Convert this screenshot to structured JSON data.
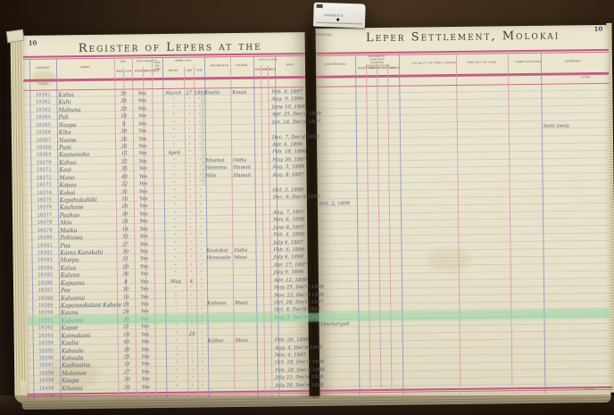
{
  "header": {
    "left_title": "Register of Lepers at the",
    "right_title": "Leper Settlement, Molokai",
    "left_page_number": "10",
    "right_page_number": "10"
  },
  "tab": {
    "line1": "HANSEN'S",
    "line2": "DISEASE"
  },
  "total_label": "TOTAL",
  "columns": {
    "left": {
      "number": "NUMBER",
      "name": "NAME",
      "sex_group": "SEX",
      "sex_male": "Male",
      "sex_female": "Fem.",
      "nat_group": "NATIONALITY",
      "nat_hawaiian": "Hawaiian",
      "nat_foreigner": "Foreigner",
      "age": "AGE ON ADM.",
      "adm_group": "ADMITTED",
      "adm_month": "Month",
      "adm_day": "Day",
      "adm_year": "Year",
      "residence": "RESIDENCE",
      "island": "ISLAND",
      "civil_group": "CIVIL STATE",
      "civil_married": "Married",
      "civil_unmarried": "Unmar.",
      "civil_widowed": "Wid.",
      "died": "DIED"
    },
    "right": {
      "discharged": "DISCHARGED",
      "manifest_group": "NATURE OF EARLIEST LEPROUS MANIFESTATION",
      "manifest_subs": [
        "Anaesthetic",
        "Macular",
        "Tubercular",
        "Mixed"
      ],
      "locality": "LOCALITY OF FIRST LESION",
      "history": "HISTORY OF CASE",
      "complications": "COMPLICATIONS",
      "remarks": "REMARKS"
    }
  },
  "rows": [
    {
      "n": "10361",
      "name": "Kahia",
      "age": "30",
      "haw": "Yes",
      "mo": "March",
      "dy": "27",
      "yr": "1893",
      "res": "Kealia",
      "isl": "Kauai",
      "died": "Feb. 8, 1897"
    },
    {
      "n": "10362",
      "name": "Kuhi",
      "age": "38",
      "haw": "Yes",
      "mo": "″",
      "dy": "″",
      "yr": "″",
      "died": "Aug. 9, 1896"
    },
    {
      "n": "10363",
      "name": "Mahuna",
      "age": "28",
      "haw": "Yes",
      "mo": "″",
      "dy": "″",
      "yr": "″",
      "died": "June 10, 1900"
    },
    {
      "n": "10364",
      "name": "Pali",
      "age": "18",
      "haw": "Yes",
      "mo": "″",
      "dy": "″",
      "yr": "″",
      "died": "Apr. 25, Dec'd 1898"
    },
    {
      "n": "10365",
      "name": "Naapa",
      "age": "8",
      "haw": "Yes",
      "mo": "″",
      "dy": "″",
      "yr": "″",
      "died": "Jan. 24, Dec'd 1897"
    },
    {
      "n": "10366",
      "name": "Kiha",
      "age": "30",
      "haw": "Yes",
      "mo": "″",
      "dy": "″",
      "yr": "″",
      "rem": "Sent away"
    },
    {
      "n": "10367",
      "name": "Naone",
      "age": "26",
      "haw": "Yes",
      "mo": "″",
      "dy": "″",
      "yr": "″",
      "died": "Dec. 7, Dec'd 1896"
    },
    {
      "n": "10368",
      "name": "Puni",
      "age": "20",
      "haw": "Yes",
      "mo": "″",
      "dy": "″",
      "yr": "″",
      "died": "Apr. 6, 1896"
    },
    {
      "n": "10369",
      "name": "Kaananoho",
      "age": "15",
      "haw": "Yes",
      "mo": "April",
      "dy": "″",
      "yr": "″",
      "died": "Feb. 18, 1898"
    },
    {
      "n": "10370",
      "name": "Kahua",
      "age": "25",
      "haw": "Yes",
      "mo": "″",
      "dy": "″",
      "yr": "″",
      "res": "Moanui",
      "isl": "Oahu",
      "died": "May 30, 1897"
    },
    {
      "n": "10371",
      "name": "Kaai",
      "age": "35",
      "haw": "Yes",
      "mo": "″",
      "dy": "″",
      "yr": "″",
      "res": "Honomu",
      "isl": "Hawaii",
      "died": "Aug. 5, 1899"
    },
    {
      "n": "10372",
      "name": "Mano",
      "age": "40",
      "haw": "Yes",
      "mo": "″",
      "dy": "″",
      "yr": "″",
      "res": "Hilo",
      "isl": "Hawaii",
      "died": "Aug. 8, 1897"
    },
    {
      "n": "10373",
      "name": "Kapaa",
      "age": "22",
      "haw": "Yes",
      "mo": "″",
      "dy": "″",
      "yr": "″"
    },
    {
      "n": "10374",
      "name": "Kahai",
      "age": "31",
      "haw": "Yes",
      "mo": "″",
      "dy": "″",
      "yr": "″",
      "died": "Oct. 3, 1898"
    },
    {
      "n": "10375",
      "name": "Kapahukahiki",
      "age": "16",
      "haw": "Yes",
      "mo": "″",
      "dy": "″",
      "yr": "″",
      "died": "Dec. 9, Dec'd 1896"
    },
    {
      "n": "10376",
      "name": "Kauhane",
      "age": "26",
      "haw": "Yes",
      "mo": "″",
      "dy": "″",
      "yr": "″",
      "disch": "Oct. 2, 1899"
    },
    {
      "n": "10377",
      "name": "Paahao",
      "age": "30",
      "haw": "Yes",
      "mo": "″",
      "dy": "″",
      "yr": "″",
      "died": "Aug. 7, 1897"
    },
    {
      "n": "10378",
      "name": "Akiu",
      "age": "24",
      "haw": "Yes",
      "mo": "″",
      "dy": "″",
      "yr": "″",
      "died": "Nov. 6, 1898"
    },
    {
      "n": "10379",
      "name": "Maiku",
      "age": "19",
      "haw": "Yes",
      "mo": "″",
      "dy": "″",
      "yr": "″",
      "died": "June 8, 1897"
    },
    {
      "n": "10380",
      "name": "Pohiawa",
      "age": "33",
      "haw": "Yes",
      "mo": "″",
      "dy": "″",
      "yr": "″",
      "died": "Feb. 4, 1899"
    },
    {
      "n": "10381",
      "name": "Pua",
      "age": "27",
      "haw": "Yes",
      "mo": "″",
      "dy": "″",
      "yr": "″",
      "died": "July 4, 1897"
    },
    {
      "n": "10382",
      "name": "Kaina Kanakahi",
      "age": "30",
      "haw": "Yes",
      "mo": "″",
      "dy": "″",
      "yr": "″",
      "res": "Kealakai",
      "isl": "Oahu",
      "died": "Feb. 6, 1896"
    },
    {
      "n": "10383",
      "name": "Moepu",
      "age": "21",
      "haw": "Yes",
      "mo": "″",
      "dy": "″",
      "yr": "″",
      "res": "Honuaula",
      "isl": "Maui",
      "died": "July 6, 1898"
    },
    {
      "n": "10384",
      "name": "Kalua",
      "age": "20",
      "haw": "Yes",
      "mo": "″",
      "dy": "″",
      "yr": "″",
      "died": "Apr. 27, 1897"
    },
    {
      "n": "10385",
      "name": "Kaluna",
      "age": "36",
      "haw": "Yes",
      "mo": "″",
      "dy": "″",
      "yr": "″",
      "died": "July 9, 1896"
    },
    {
      "n": "10386",
      "name": "Kapuana",
      "age": "8",
      "haw": "Yes",
      "mo": "May",
      "dy": "4",
      "yr": "″",
      "died": "Apr. 12, 1899"
    },
    {
      "n": "10387",
      "name": "Poe",
      "age": "30",
      "haw": "Yes",
      "mo": "″",
      "dy": "″",
      "yr": "″",
      "died": "May 25, Dec'd 1898"
    },
    {
      "n": "10388",
      "name": "Kaluanui",
      "age": "16",
      "haw": "Yes",
      "mo": "″",
      "dy": "″",
      "yr": "″",
      "died": "Nov. 23, Dec'd 1896"
    },
    {
      "n": "10389",
      "name": "Kapanookalani Kahele",
      "age": "28",
      "haw": "Yes",
      "mo": "″",
      "dy": "″",
      "yr": "″",
      "res": "Kahana",
      "isl": "Maui",
      "died": "Oct. 28, Dec'd 1897"
    },
    {
      "n": "10390",
      "name": "Kaunu",
      "age": "24",
      "haw": "Yes",
      "mo": "″",
      "dy": "″",
      "yr": "″",
      "died": "Oct. 8, Dec'd 1897"
    },
    {
      "n": "10391",
      "name": "Kahanui",
      "age": "30",
      "haw": "Yes",
      "mo": "″",
      "dy": "″",
      "yr": "″",
      "died": "May 3, Dec'd 1897",
      "hl": true
    },
    {
      "n": "10392",
      "name": "Kapae",
      "age": "21",
      "haw": "Yes",
      "mo": "″",
      "dy": "″",
      "yr": "″",
      "disch": "Discharged"
    },
    {
      "n": "10393",
      "name": "Kaimakani",
      "age": "18",
      "haw": "Yes",
      "mo": "″",
      "dy": "28",
      "yr": "″"
    },
    {
      "n": "10394",
      "name": "Kaulia",
      "age": "40",
      "haw": "Yes",
      "mo": "″",
      "dy": "″",
      "yr": "″",
      "res": "Kailua",
      "isl": "Maui",
      "died": "Feb. 26, 1898"
    },
    {
      "n": "10395",
      "name": "Kahaule",
      "age": "30",
      "haw": "Yes",
      "mo": "″",
      "dy": "″",
      "yr": "″",
      "died": "Aug. 4, Dec'd 1899"
    },
    {
      "n": "10396",
      "name": "Kahaala",
      "age": "25",
      "haw": "Yes",
      "mo": "″",
      "dy": "″",
      "yr": "″",
      "died": "Nov. 4, 1897"
    },
    {
      "n": "10397",
      "name": "Kaahaaina",
      "age": "33",
      "haw": "Yes",
      "mo": "″",
      "dy": "″",
      "yr": "″",
      "died": "Oct. 28, Dec'd 1898"
    },
    {
      "n": "10398",
      "name": "Makanoe",
      "age": "27",
      "haw": "Yes",
      "mo": "″",
      "dy": "″",
      "yr": "″",
      "died": "Feb. 28, Dec'd 1898"
    },
    {
      "n": "10399",
      "name": "Kaupa",
      "age": "30",
      "haw": "Yes",
      "mo": "″",
      "dy": "″",
      "yr": "″",
      "died": "July 23, Dec'd 1898"
    },
    {
      "n": "10400",
      "name": "Kihania",
      "age": "26",
      "haw": "Yes",
      "mo": "″",
      "dy": "″",
      "yr": "″",
      "died": "July 28, Dec'd 1898"
    }
  ]
}
